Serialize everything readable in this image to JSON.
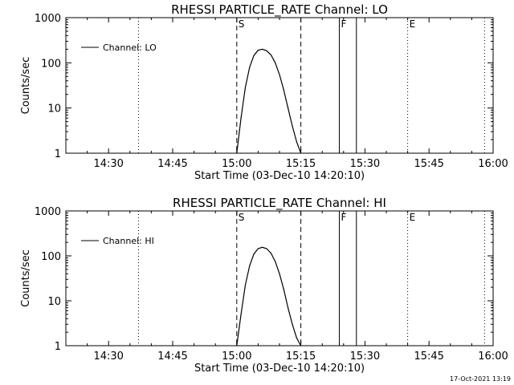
{
  "footer": {
    "timestamp": "17-Oct-2021 13:19"
  },
  "chart_data": [
    {
      "type": "line",
      "title": "RHESSI PARTICLE_RATE Channel: LO",
      "xlabel": "Start Time (03-Dec-10 14:20:10)",
      "ylabel": "Counts/sec",
      "yscale": "log",
      "ylim": [
        1,
        1000
      ],
      "xlim": [
        "14:20",
        "16:00"
      ],
      "x_ticks": [
        "14:30",
        "14:45",
        "15:00",
        "15:15",
        "15:30",
        "15:45",
        "16:00"
      ],
      "y_ticks": [
        "1",
        "10",
        "100",
        "1000"
      ],
      "legend": "top-left",
      "series": [
        {
          "name": "Channel: LO",
          "x": [
            "15:00",
            "15:01",
            "15:02",
            "15:03",
            "15:04",
            "15:05",
            "15:06",
            "15:07",
            "15:08",
            "15:09",
            "15:10",
            "15:11",
            "15:12",
            "15:13",
            "15:14",
            "15:15"
          ],
          "values": [
            1,
            6,
            28,
            80,
            145,
            190,
            200,
            185,
            150,
            100,
            55,
            25,
            10,
            4,
            1.8,
            1
          ]
        }
      ],
      "markers": [
        {
          "time": "14:37",
          "style": "dotted",
          "label": ""
        },
        {
          "time": "15:00",
          "style": "dashed",
          "label": "S"
        },
        {
          "time": "15:15",
          "style": "dashed",
          "label": ""
        },
        {
          "time": "15:24",
          "style": "solid",
          "label": "F"
        },
        {
          "time": "15:28",
          "style": "solid",
          "label": ""
        },
        {
          "time": "15:40",
          "style": "dotted",
          "label": "E"
        },
        {
          "time": "15:58",
          "style": "dotted",
          "label": ""
        }
      ]
    },
    {
      "type": "line",
      "title": "RHESSI PARTICLE_RATE Channel: HI",
      "xlabel": "Start Time (03-Dec-10 14:20:10)",
      "ylabel": "Counts/sec",
      "yscale": "log",
      "ylim": [
        1,
        1000
      ],
      "xlim": [
        "14:20",
        "16:00"
      ],
      "x_ticks": [
        "14:30",
        "14:45",
        "15:00",
        "15:15",
        "15:30",
        "15:45",
        "16:00"
      ],
      "y_ticks": [
        "1",
        "10",
        "100",
        "1000"
      ],
      "legend": "top-left",
      "series": [
        {
          "name": "Channel: HI",
          "x": [
            "15:00",
            "15:01",
            "15:02",
            "15:03",
            "15:04",
            "15:05",
            "15:06",
            "15:07",
            "15:08",
            "15:09",
            "15:10",
            "15:11",
            "15:12",
            "15:13",
            "15:14",
            "15:15"
          ],
          "values": [
            1,
            5,
            22,
            60,
            110,
            145,
            155,
            145,
            115,
            75,
            40,
            18,
            7,
            3,
            1.5,
            1
          ]
        }
      ],
      "markers": [
        {
          "time": "14:37",
          "style": "dotted",
          "label": ""
        },
        {
          "time": "15:00",
          "style": "dashed",
          "label": "S"
        },
        {
          "time": "15:15",
          "style": "dashed",
          "label": ""
        },
        {
          "time": "15:24",
          "style": "solid",
          "label": "F"
        },
        {
          "time": "15:28",
          "style": "solid",
          "label": ""
        },
        {
          "time": "15:40",
          "style": "dotted",
          "label": "E"
        },
        {
          "time": "15:58",
          "style": "dotted",
          "label": ""
        }
      ]
    }
  ]
}
